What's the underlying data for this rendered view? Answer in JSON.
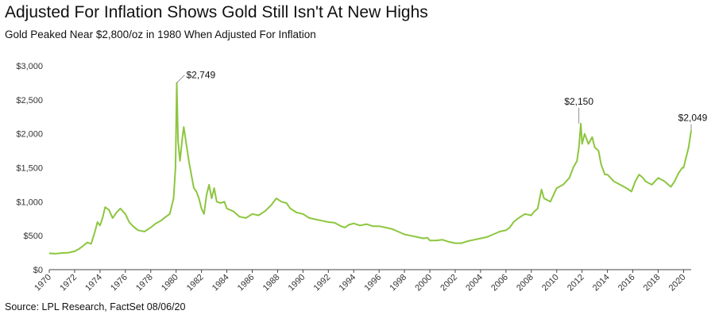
{
  "chart_data": {
    "type": "line",
    "title": "Adjusted For Inflation Shows Gold Still Isn't At New Highs",
    "subtitle": "Gold Peaked Near $2,800/oz in 1980 When Adjusted For Inflation",
    "source": "Source: LPL Research, FactSet 08/06/20",
    "xlabel": "",
    "ylabel": "",
    "xlim": [
      1970,
      2020.6
    ],
    "ylim": [
      0,
      3000
    ],
    "y_ticks": [
      {
        "value": 0,
        "label": "$0"
      },
      {
        "value": 500,
        "label": "$500"
      },
      {
        "value": 1000,
        "label": "$1,000"
      },
      {
        "value": 1500,
        "label": "$1,500"
      },
      {
        "value": 2000,
        "label": "$2,000"
      },
      {
        "value": 2500,
        "label": "$2,500"
      },
      {
        "value": 3000,
        "label": "$3,000"
      }
    ],
    "x_ticks": [
      "1970",
      "1972",
      "1974",
      "1976",
      "1978",
      "1980",
      "1982",
      "1984",
      "1986",
      "1988",
      "1990",
      "1992",
      "1994",
      "1996",
      "1998",
      "2000",
      "2002",
      "2004",
      "2006",
      "2008",
      "2010",
      "2012",
      "2014",
      "2016",
      "2018",
      "2020"
    ],
    "grid": false,
    "line_color": "#8dc63f",
    "series": [
      {
        "x": [
          1970.0,
          1970.5,
          1971.0,
          1971.5,
          1972.0,
          1972.3,
          1972.6,
          1973.0,
          1973.3,
          1973.6,
          1973.8,
          1974.0,
          1974.2,
          1974.4,
          1974.7,
          1975.0,
          1975.3,
          1975.6,
          1976.0,
          1976.3,
          1976.6,
          1977.0,
          1977.5,
          1978.0,
          1978.4,
          1978.8,
          1979.2,
          1979.5,
          1979.8,
          1979.95,
          1980.05,
          1980.15,
          1980.3,
          1980.5,
          1980.6,
          1980.8,
          1981.0,
          1981.2,
          1981.4,
          1981.6,
          1981.8,
          1982.0,
          1982.2,
          1982.4,
          1982.6,
          1982.8,
          1983.0,
          1983.2,
          1983.5,
          1983.8,
          1984.0,
          1984.5,
          1985.0,
          1985.5,
          1986.0,
          1986.5,
          1987.0,
          1987.5,
          1987.9,
          1988.3,
          1988.7,
          1989.0,
          1989.5,
          1990.0,
          1990.5,
          1991.0,
          1991.5,
          1992.0,
          1992.5,
          1993.0,
          1993.3,
          1993.6,
          1994.0,
          1994.5,
          1995.0,
          1995.5,
          1996.0,
          1996.5,
          1997.0,
          1997.5,
          1998.0,
          1998.5,
          1999.0,
          1999.5,
          1999.8,
          2000.0,
          2000.5,
          2001.0,
          2001.5,
          2002.0,
          2002.5,
          2003.0,
          2003.5,
          2004.0,
          2004.5,
          2005.0,
          2005.5,
          2006.0,
          2006.3,
          2006.6,
          2007.0,
          2007.5,
          2008.0,
          2008.2,
          2008.5,
          2008.8,
          2009.0,
          2009.5,
          2010.0,
          2010.5,
          2011.0,
          2011.3,
          2011.6,
          2011.75,
          2011.9,
          2012.0,
          2012.2,
          2012.5,
          2012.8,
          2013.0,
          2013.3,
          2013.5,
          2013.8,
          2014.0,
          2014.5,
          2015.0,
          2015.5,
          2015.9,
          2016.2,
          2016.5,
          2016.8,
          2017.0,
          2017.5,
          2018.0,
          2018.5,
          2018.8,
          2019.0,
          2019.3,
          2019.6,
          2019.9,
          2020.0,
          2020.2,
          2020.4,
          2020.6
        ],
        "y": [
          240,
          235,
          245,
          250,
          270,
          300,
          340,
          400,
          380,
          560,
          700,
          650,
          760,
          920,
          880,
          760,
          840,
          900,
          820,
          700,
          640,
          580,
          560,
          620,
          680,
          720,
          780,
          820,
          1050,
          1500,
          2749,
          1900,
          1600,
          1950,
          2100,
          1850,
          1600,
          1400,
          1200,
          1150,
          1050,
          900,
          820,
          1100,
          1250,
          1050,
          1200,
          1000,
          980,
          1000,
          900,
          860,
          780,
          760,
          820,
          800,
          860,
          950,
          1050,
          1000,
          980,
          900,
          840,
          820,
          760,
          740,
          720,
          700,
          690,
          640,
          620,
          660,
          680,
          650,
          670,
          640,
          640,
          620,
          600,
          560,
          520,
          500,
          480,
          460,
          470,
          430,
          430,
          440,
          410,
          390,
          390,
          420,
          440,
          460,
          480,
          520,
          560,
          580,
          620,
          700,
          760,
          820,
          800,
          850,
          900,
          1180,
          1050,
          1000,
          1200,
          1250,
          1350,
          1500,
          1600,
          1800,
          2150,
          1850,
          2000,
          1850,
          1950,
          1800,
          1750,
          1550,
          1400,
          1400,
          1300,
          1250,
          1200,
          1150,
          1300,
          1400,
          1350,
          1300,
          1250,
          1350,
          1300,
          1250,
          1220,
          1300,
          1420,
          1500,
          1500,
          1650,
          1800,
          2049
        ]
      }
    ],
    "annotations": [
      {
        "label": "$2,749",
        "x": 1980.05,
        "y": 2749
      },
      {
        "label": "$2,150",
        "x": 2011.75,
        "y": 2150
      },
      {
        "label": "$2,049",
        "x": 2020.6,
        "y": 2049
      }
    ]
  }
}
